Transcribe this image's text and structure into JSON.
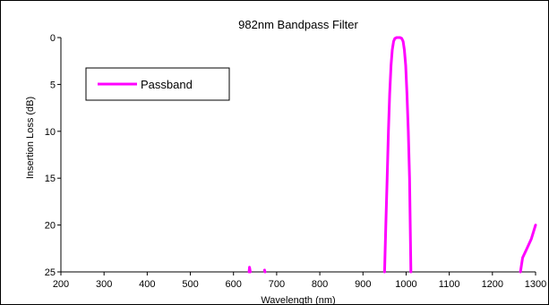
{
  "chart_data": {
    "type": "line",
    "title": "982nm Bandpass Filter",
    "xlabel": "Wavelength (nm)",
    "ylabel": "Insertion Loss (dB)",
    "xlim": [
      200,
      1300
    ],
    "ylim": [
      0,
      25
    ],
    "y_inverted": true,
    "x_ticks": [
      200,
      300,
      400,
      500,
      600,
      700,
      800,
      900,
      1000,
      1100,
      1200,
      1300
    ],
    "y_ticks": [
      0,
      5,
      10,
      15,
      20,
      25
    ],
    "grid": false,
    "legend_position": "upper-left",
    "series": [
      {
        "name": "Passband",
        "color": "#ff00ff",
        "segments": [
          [
            [
              636,
              25
            ],
            [
              637,
              24.5
            ],
            [
              639,
              25
            ]
          ],
          [
            [
              672,
              24.8
            ],
            [
              673,
              25
            ]
          ],
          [
            [
              950,
              25
            ],
            [
              953,
              20
            ],
            [
              956,
              15
            ],
            [
              959,
              10
            ],
            [
              962,
              6
            ],
            [
              965,
              3
            ],
            [
              968,
              1.3
            ],
            [
              971,
              0.4
            ],
            [
              974,
              0.1
            ],
            [
              978,
              0
            ],
            [
              982,
              0
            ],
            [
              986,
              0
            ],
            [
              990,
              0.1
            ],
            [
              993,
              0.4
            ],
            [
              996,
              1.3
            ],
            [
              999,
              3
            ],
            [
              1002,
              6
            ],
            [
              1005,
              10
            ],
            [
              1008,
              15
            ],
            [
              1011,
              25
            ]
          ],
          [
            [
              1265,
              25
            ],
            [
              1270,
              23.5
            ],
            [
              1280,
              22.5
            ],
            [
              1290,
              21.5
            ],
            [
              1300,
              20
            ]
          ]
        ]
      }
    ]
  }
}
